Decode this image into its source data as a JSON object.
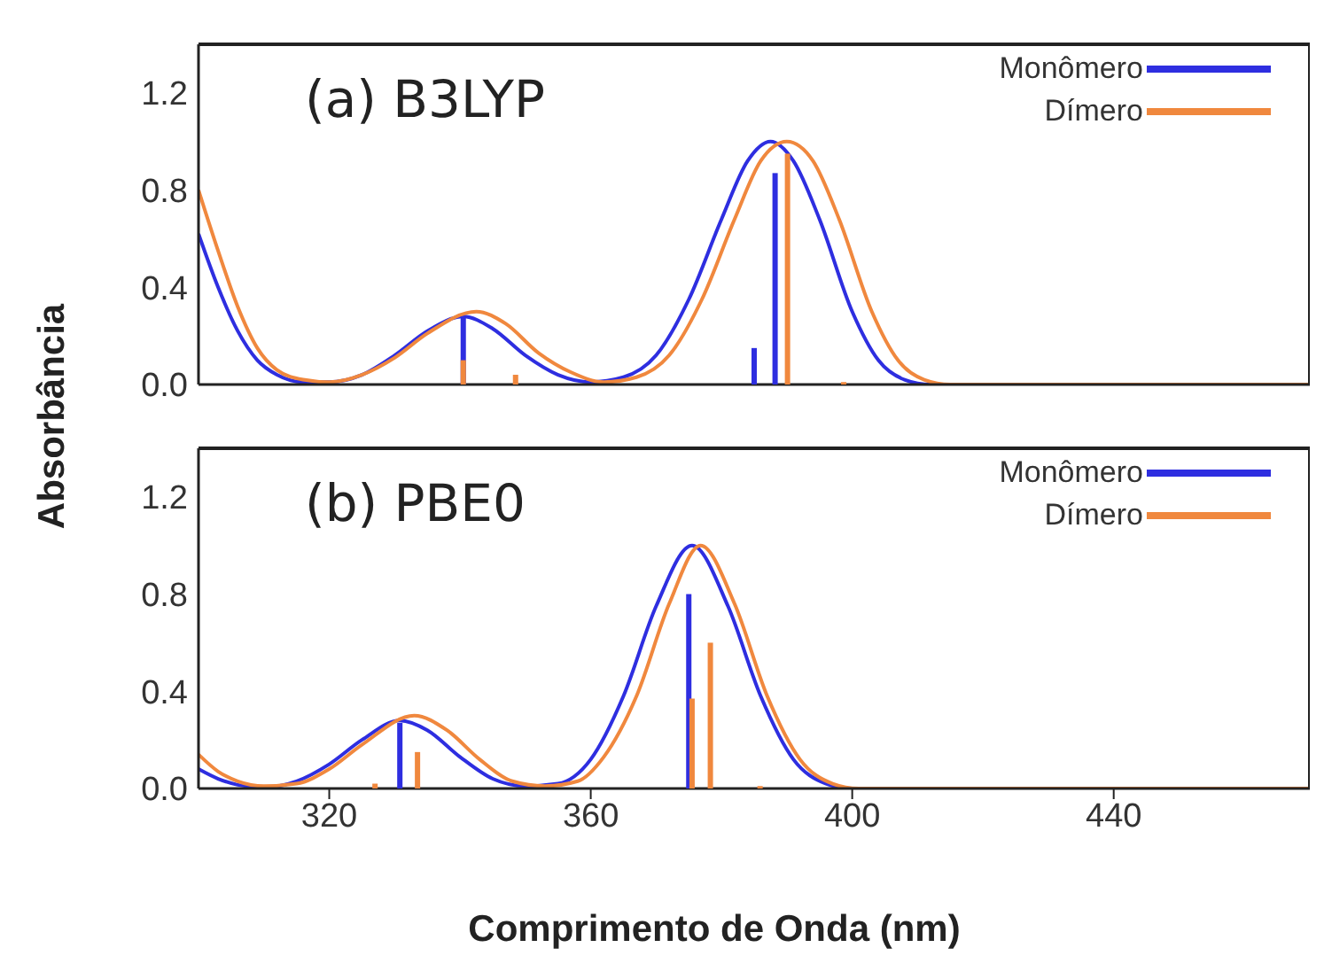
{
  "chart_data": [
    {
      "type": "line",
      "title": "(a) B3LYP",
      "ylabel": "Absorbância",
      "xlim": [
        300,
        470
      ],
      "xticks": [
        320,
        360,
        400,
        440
      ],
      "ylim": [
        0,
        1.4
      ],
      "yticks": [
        {
          "value": 0,
          "label": "0.0"
        },
        0.4,
        0.8,
        1.2
      ],
      "tick_labels": "y",
      "legend": "top right",
      "marker": "none",
      "line_style": "solid",
      "series": [
        {
          "name": "Monômero",
          "color": "#2e2ee0",
          "x": [
            300,
            303,
            306,
            309,
            312,
            316,
            320,
            325,
            330,
            335,
            340.5,
            345,
            350,
            355,
            360,
            365,
            370,
            375,
            380,
            384,
            387.5,
            391,
            395,
            400,
            404,
            408,
            412,
            470
          ],
          "values": [
            0.62,
            0.4,
            0.22,
            0.1,
            0.04,
            0.01,
            0.01,
            0.04,
            0.12,
            0.22,
            0.28,
            0.23,
            0.12,
            0.04,
            0.01,
            0.03,
            0.12,
            0.35,
            0.68,
            0.92,
            1.0,
            0.92,
            0.68,
            0.3,
            0.1,
            0.02,
            0,
            0
          ]
        },
        {
          "name": "Dímero",
          "color": "#f0883e",
          "x": [
            300,
            303,
            306,
            309,
            312,
            316,
            320,
            325,
            330,
            335,
            342.5,
            347,
            352,
            357,
            362,
            367,
            372,
            377,
            382,
            386,
            390,
            394,
            398,
            403,
            407,
            411,
            415,
            470
          ],
          "values": [
            0.8,
            0.55,
            0.32,
            0.15,
            0.06,
            0.02,
            0.01,
            0.04,
            0.11,
            0.21,
            0.3,
            0.25,
            0.13,
            0.05,
            0.01,
            0.03,
            0.12,
            0.35,
            0.68,
            0.92,
            1.0,
            0.92,
            0.68,
            0.3,
            0.1,
            0.02,
            0,
            0
          ]
        },
        {
          "type": "bar",
          "color": "#2e2ee0",
          "x": [
            340.5,
            385,
            388.2
          ],
          "values": [
            0.28,
            0.15,
            0.87
          ]
        },
        {
          "type": "bar",
          "color": "#f0883e",
          "x": [
            340.5,
            348.5,
            390.1,
            398.7
          ],
          "values": [
            0.1,
            0.04,
            0.95,
            0.01
          ]
        }
      ]
    },
    {
      "type": "line",
      "title": "(b) PBE0",
      "xlabel": "Comprimento de Onda (nm)",
      "xlim": [
        300,
        470
      ],
      "xticks": [
        320,
        360,
        400,
        440
      ],
      "ylim": [
        0,
        1.4
      ],
      "yticks": [
        {
          "value": 0,
          "label": "0.0"
        },
        0.4,
        0.8,
        1.2
      ],
      "legend": "top right",
      "marker": "none",
      "line_style": "solid",
      "series": [
        {
          "name": "Monômero",
          "color": "#2e2ee0",
          "x": [
            300,
            303,
            306,
            310,
            315,
            320,
            325,
            330.8,
            335,
            340,
            345,
            350,
            355,
            360,
            365,
            370,
            375.5,
            381,
            386,
            391,
            396,
            400,
            470
          ],
          "values": [
            0.08,
            0.04,
            0.015,
            0.005,
            0.03,
            0.1,
            0.2,
            0.28,
            0.24,
            0.13,
            0.04,
            0.01,
            0.02,
            0.12,
            0.38,
            0.75,
            1.0,
            0.75,
            0.38,
            0.12,
            0.02,
            0,
            0
          ]
        },
        {
          "name": "Dímero",
          "color": "#f0883e",
          "x": [
            300,
            303,
            306,
            310,
            315,
            320,
            325,
            333,
            338,
            343,
            348,
            353,
            358,
            362,
            367,
            372,
            376.8,
            382,
            387,
            392,
            397,
            401,
            470
          ],
          "values": [
            0.14,
            0.07,
            0.03,
            0.01,
            0.02,
            0.08,
            0.18,
            0.3,
            0.24,
            0.12,
            0.03,
            0.01,
            0.03,
            0.13,
            0.38,
            0.76,
            1.0,
            0.76,
            0.38,
            0.12,
            0.02,
            0,
            0
          ]
        },
        {
          "type": "bar",
          "color": "#2e2ee0",
          "x": [
            330.8,
            375
          ],
          "values": [
            0.27,
            0.8
          ]
        },
        {
          "type": "bar",
          "color": "#f0883e",
          "x": [
            327,
            333.5,
            375.5,
            378.3,
            385.9
          ],
          "values": [
            0.02,
            0.15,
            0.37,
            0.6,
            0.01
          ]
        }
      ]
    }
  ]
}
